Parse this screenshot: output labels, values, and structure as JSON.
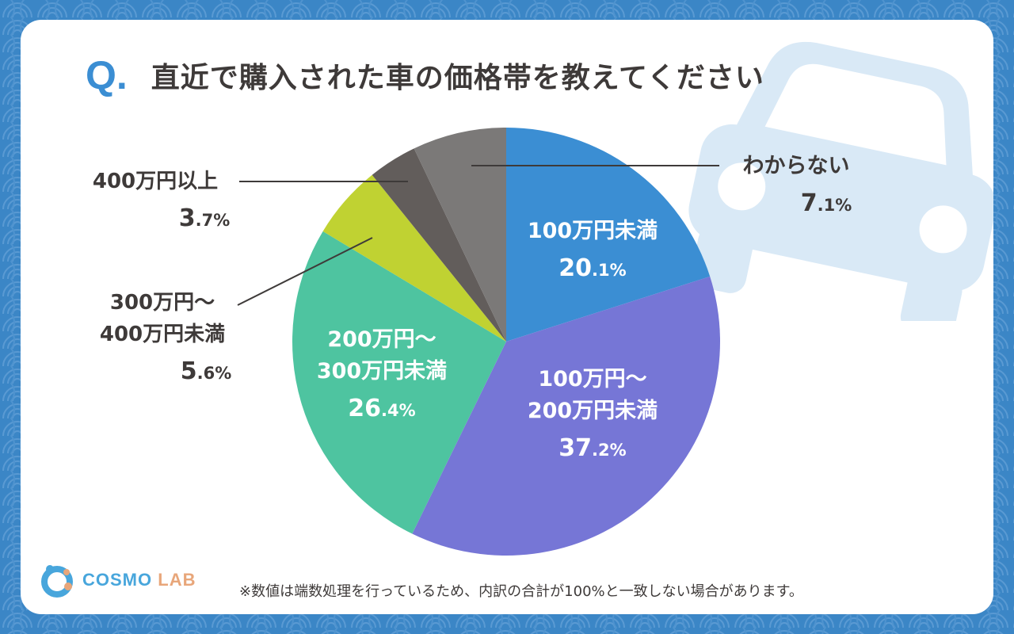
{
  "title": {
    "marker": "Q.",
    "question": "直近で購入された車の価格帯を教えてください"
  },
  "footnote": "※数値は端数処理を行っているため、内訳の合計が100%と一致しない場合があります。",
  "logo": {
    "word": "COSMO",
    "word2": "LAB",
    "icon": "cosmo-lab-logo-icon"
  },
  "colors": {
    "background": "#3b86c6",
    "accent": "#3b8ed3",
    "text": "#3e3a39",
    "car": "#d9e9f6"
  },
  "chart_data": {
    "type": "pie",
    "title": "直近で購入された車の価格帯を教えてください",
    "start_angle_deg": 0,
    "direction": "clockwise",
    "slices": [
      {
        "label_lines": [
          "100万円未満"
        ],
        "value": 20.1,
        "value_text": "20.1%",
        "color": "#3b8ed3",
        "label_position": "inside"
      },
      {
        "label_lines": [
          "100万円～",
          "200万円未満"
        ],
        "value": 37.2,
        "value_text": "37.2%",
        "color": "#7676d6",
        "label_position": "inside"
      },
      {
        "label_lines": [
          "200万円～",
          "300万円未満"
        ],
        "value": 26.4,
        "value_text": "26.4%",
        "color": "#4ec4a0",
        "label_position": "inside"
      },
      {
        "label_lines": [
          "300万円～",
          "400万円未満"
        ],
        "value": 5.6,
        "value_text": "5.6%",
        "color": "#c0d232",
        "label_position": "outside-left"
      },
      {
        "label_lines": [
          "400万円以上"
        ],
        "value": 3.7,
        "value_text": "3.7%",
        "color": "#625d5b",
        "label_position": "outside-left"
      },
      {
        "label_lines": [
          "わからない"
        ],
        "value": 7.1,
        "value_text": "7.1%",
        "color": "#7b7978",
        "label_position": "outside-right"
      }
    ]
  }
}
